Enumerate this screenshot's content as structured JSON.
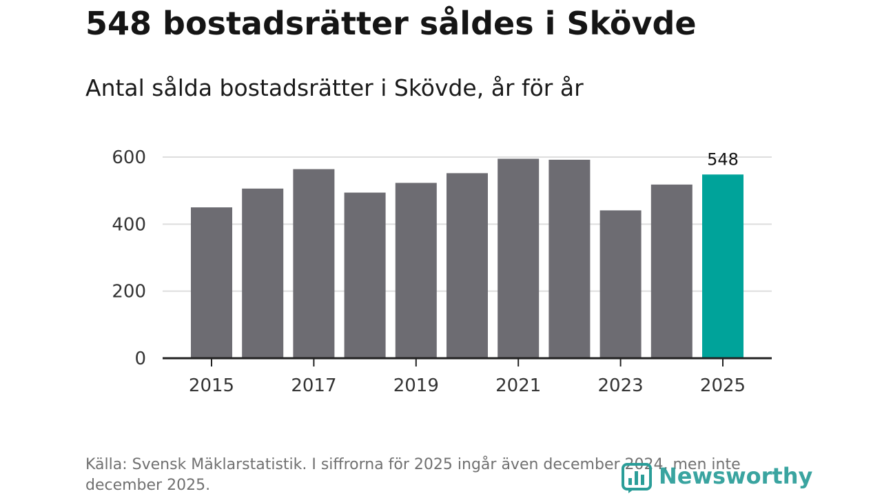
{
  "header": {
    "title": "548 bostadsrätter såldes i Skövde",
    "subtitle": "Antal sålda bostadsrätter i Skövde, år för år"
  },
  "footer": {
    "source": "Källa: Svensk Mäklarstatistik. I siffrorna för 2025 ingår även december 2024, men inte december 2025.",
    "brand": "Newsworthy"
  },
  "colors": {
    "bar": "#6d6c72",
    "highlight": "#00a39a",
    "axis": "#222222",
    "grid": "#dddddd",
    "brand": "#2a9d98"
  },
  "chart_data": {
    "type": "bar",
    "categories": [
      "2015",
      "2016",
      "2017",
      "2018",
      "2019",
      "2020",
      "2021",
      "2022",
      "2023",
      "2024",
      "2025"
    ],
    "values": [
      450,
      506,
      564,
      494,
      523,
      552,
      595,
      592,
      441,
      518,
      548
    ],
    "x_tick_labels": [
      "2015",
      "2017",
      "2019",
      "2021",
      "2023",
      "2025"
    ],
    "y_ticks": [
      0,
      200,
      400,
      600
    ],
    "ylim": [
      0,
      600
    ],
    "highlight_category": "2025",
    "data_labels": [
      {
        "category": "2025",
        "text": "548"
      }
    ],
    "grid": true,
    "legend": "none",
    "title": "548 bostadsrätter såldes i Skövde",
    "subtitle": "Antal sålda bostadsrätter i Skövde, år för år",
    "xlabel": "",
    "ylabel": ""
  }
}
